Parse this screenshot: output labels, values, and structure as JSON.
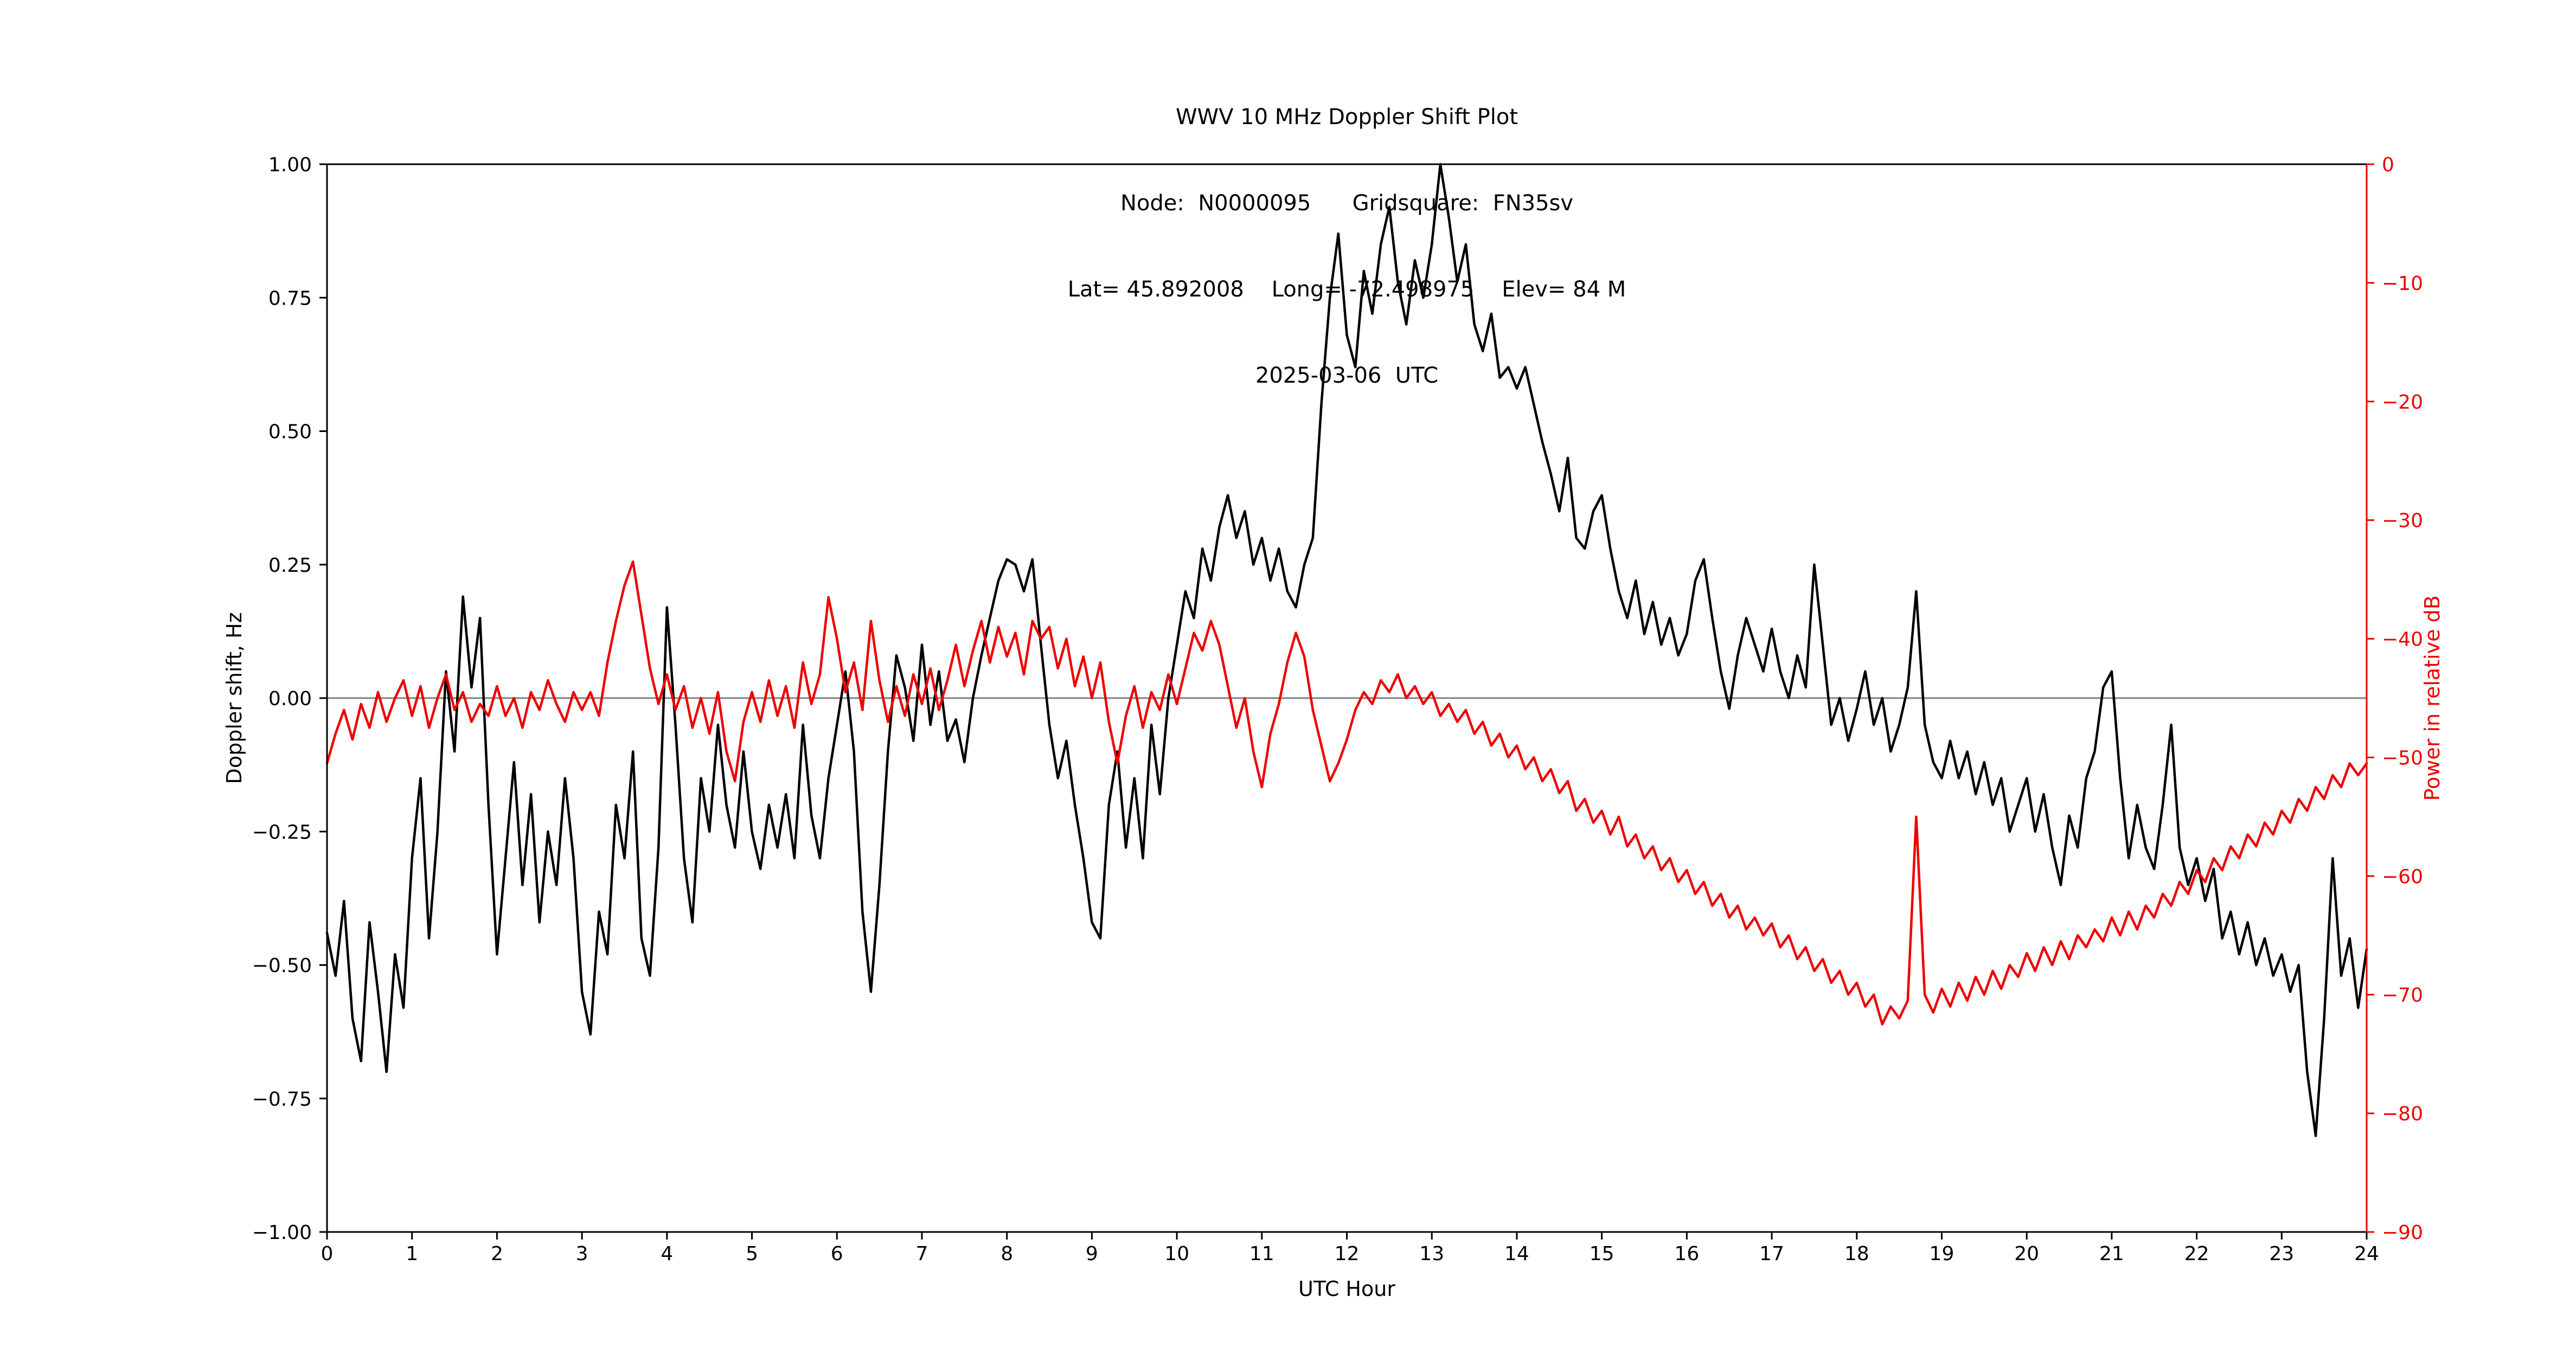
{
  "title": {
    "line1": "WWV 10 MHz Doppler Shift Plot",
    "line2": "Node:  N0000095      Gridsquare:  FN35sv",
    "line3": "Lat= 45.892008    Long= -72.498975    Elev= 84 M",
    "line4": "2025-03-06  UTC"
  },
  "colors": {
    "doppler": "#000000",
    "power": "#ee0000",
    "zero_line": "#7f7f7f",
    "spine": "#000000"
  },
  "chart_data": {
    "type": "line",
    "title": "WWV 10 MHz Doppler Shift Plot",
    "xlabel": "UTC Hour",
    "ylabel_left": "Doppler shift, Hz",
    "ylabel_right": "Power in relative dB",
    "x_range": [
      0,
      24
    ],
    "y_left_range": [
      -1.0,
      1.0
    ],
    "y_right_range": [
      -90,
      0
    ],
    "grid": false,
    "x_step": 0.1,
    "x_ticks": [
      0,
      1,
      2,
      3,
      4,
      5,
      6,
      7,
      8,
      9,
      10,
      11,
      12,
      13,
      14,
      15,
      16,
      17,
      18,
      19,
      20,
      21,
      22,
      23,
      24
    ],
    "x_tick_labels": [
      "0",
      "1",
      "2",
      "3",
      "4",
      "5",
      "6",
      "7",
      "8",
      "9",
      "10",
      "11",
      "12",
      "13",
      "14",
      "15",
      "16",
      "17",
      "18",
      "19",
      "20",
      "21",
      "22",
      "23",
      "24"
    ],
    "y_left_ticks": [
      1.0,
      0.75,
      0.5,
      0.25,
      0.0,
      -0.25,
      -0.5,
      -0.75,
      -1.0
    ],
    "y_left_tick_labels": [
      "1.00",
      "0.75",
      "0.50",
      "0.25",
      "0.00",
      "−0.25",
      "−0.50",
      "−0.75",
      "−1.00"
    ],
    "y_right_ticks": [
      0,
      -10,
      -20,
      -30,
      -40,
      -50,
      -60,
      -70,
      -80,
      -90
    ],
    "y_right_tick_labels": [
      "0",
      "−10",
      "−20",
      "−30",
      "−40",
      "−50",
      "−60",
      "−70",
      "−80",
      "−90"
    ],
    "zero_line": {
      "y": 0.0,
      "color": "#7f7f7f"
    },
    "series": [
      {
        "name": "Doppler shift, Hz",
        "slug": "doppler-shift",
        "axis": "left",
        "color": "#000000",
        "values": [
          -0.44,
          -0.52,
          -0.38,
          -0.6,
          -0.68,
          -0.42,
          -0.55,
          -0.7,
          -0.48,
          -0.58,
          -0.3,
          -0.15,
          -0.45,
          -0.25,
          0.05,
          -0.1,
          0.19,
          0.02,
          0.15,
          -0.2,
          -0.48,
          -0.3,
          -0.12,
          -0.35,
          -0.18,
          -0.42,
          -0.25,
          -0.35,
          -0.15,
          -0.3,
          -0.55,
          -0.63,
          -0.4,
          -0.48,
          -0.2,
          -0.3,
          -0.1,
          -0.45,
          -0.52,
          -0.28,
          0.17,
          -0.05,
          -0.3,
          -0.42,
          -0.15,
          -0.25,
          -0.05,
          -0.2,
          -0.28,
          -0.1,
          -0.25,
          -0.32,
          -0.2,
          -0.28,
          -0.18,
          -0.3,
          -0.05,
          -0.22,
          -0.3,
          -0.15,
          -0.05,
          0.05,
          -0.1,
          -0.4,
          -0.55,
          -0.35,
          -0.1,
          0.08,
          0.02,
          -0.08,
          0.1,
          -0.05,
          0.05,
          -0.08,
          -0.04,
          -0.12,
          0.0,
          0.08,
          0.15,
          0.22,
          0.26,
          0.25,
          0.2,
          0.26,
          0.1,
          -0.05,
          -0.15,
          -0.08,
          -0.2,
          -0.3,
          -0.42,
          -0.45,
          -0.2,
          -0.1,
          -0.28,
          -0.15,
          -0.3,
          -0.05,
          -0.18,
          0.0,
          0.1,
          0.2,
          0.15,
          0.28,
          0.22,
          0.32,
          0.38,
          0.3,
          0.35,
          0.25,
          0.3,
          0.22,
          0.28,
          0.2,
          0.17,
          0.25,
          0.3,
          0.55,
          0.75,
          0.87,
          0.68,
          0.62,
          0.8,
          0.72,
          0.85,
          0.92,
          0.78,
          0.7,
          0.82,
          0.75,
          0.85,
          1.0,
          0.9,
          0.78,
          0.85,
          0.7,
          0.65,
          0.72,
          0.6,
          0.62,
          0.58,
          0.62,
          0.55,
          0.48,
          0.42,
          0.35,
          0.45,
          0.3,
          0.28,
          0.35,
          0.38,
          0.28,
          0.2,
          0.15,
          0.22,
          0.12,
          0.18,
          0.1,
          0.15,
          0.08,
          0.12,
          0.22,
          0.26,
          0.15,
          0.05,
          -0.02,
          0.08,
          0.15,
          0.1,
          0.05,
          0.13,
          0.05,
          0.0,
          0.08,
          0.02,
          0.25,
          0.1,
          -0.05,
          0.0,
          -0.08,
          -0.02,
          0.05,
          -0.05,
          0.0,
          -0.1,
          -0.05,
          0.02,
          0.2,
          -0.05,
          -0.12,
          -0.15,
          -0.08,
          -0.15,
          -0.1,
          -0.18,
          -0.12,
          -0.2,
          -0.15,
          -0.25,
          -0.2,
          -0.15,
          -0.25,
          -0.18,
          -0.28,
          -0.35,
          -0.22,
          -0.28,
          -0.15,
          -0.1,
          0.02,
          0.05,
          -0.15,
          -0.3,
          -0.2,
          -0.28,
          -0.32,
          -0.2,
          -0.05,
          -0.28,
          -0.35,
          -0.3,
          -0.38,
          -0.32,
          -0.45,
          -0.4,
          -0.48,
          -0.42,
          -0.5,
          -0.45,
          -0.52,
          -0.48,
          -0.55,
          -0.5,
          -0.7,
          -0.82,
          -0.6,
          -0.3,
          -0.52,
          -0.45,
          -0.58,
          -0.47
        ]
      },
      {
        "name": "Power in relative dB",
        "slug": "relative-power",
        "axis": "right",
        "color": "#ee0000",
        "values": [
          -50.5,
          -48.0,
          -46.0,
          -48.5,
          -45.5,
          -47.5,
          -44.5,
          -47.0,
          -45.0,
          -43.5,
          -46.5,
          -44.0,
          -47.5,
          -45.0,
          -43.0,
          -46.0,
          -44.5,
          -47.0,
          -45.5,
          -46.5,
          -44.0,
          -46.5,
          -45.0,
          -47.5,
          -44.5,
          -46.0,
          -43.5,
          -45.5,
          -47.0,
          -44.5,
          -46.0,
          -44.5,
          -46.5,
          -42.0,
          -38.5,
          -35.5,
          -33.5,
          -38.0,
          -42.5,
          -45.5,
          -43.0,
          -46.0,
          -44.0,
          -47.5,
          -45.0,
          -48.0,
          -44.5,
          -49.5,
          -52.0,
          -47.0,
          -44.5,
          -47.0,
          -43.5,
          -46.5,
          -44.0,
          -47.5,
          -42.0,
          -45.5,
          -43.0,
          -36.5,
          -40.0,
          -44.5,
          -42.0,
          -46.0,
          -38.5,
          -43.5,
          -47.0,
          -44.0,
          -46.5,
          -43.0,
          -45.5,
          -42.5,
          -46.0,
          -43.5,
          -40.5,
          -44.0,
          -41.0,
          -38.5,
          -42.0,
          -39.0,
          -41.5,
          -39.5,
          -43.0,
          -38.5,
          -40.0,
          -39.0,
          -42.5,
          -40.0,
          -44.0,
          -41.5,
          -45.0,
          -42.0,
          -47.0,
          -50.5,
          -46.5,
          -44.0,
          -47.5,
          -44.5,
          -46.0,
          -43.0,
          -45.5,
          -42.5,
          -39.5,
          -41.0,
          -38.5,
          -40.5,
          -44.0,
          -47.5,
          -45.0,
          -49.5,
          -52.5,
          -48.0,
          -45.5,
          -42.0,
          -39.5,
          -41.5,
          -46.0,
          -49.0,
          -52.0,
          -50.5,
          -48.5,
          -46.0,
          -44.5,
          -45.5,
          -43.5,
          -44.5,
          -43.0,
          -45.0,
          -44.0,
          -45.5,
          -44.5,
          -46.5,
          -45.5,
          -47.0,
          -46.0,
          -48.0,
          -47.0,
          -49.0,
          -48.0,
          -50.0,
          -49.0,
          -51.0,
          -50.0,
          -52.0,
          -51.0,
          -53.0,
          -52.0,
          -54.5,
          -53.5,
          -55.5,
          -54.5,
          -56.5,
          -55.0,
          -57.5,
          -56.5,
          -58.5,
          -57.5,
          -59.5,
          -58.5,
          -60.5,
          -59.5,
          -61.5,
          -60.5,
          -62.5,
          -61.5,
          -63.5,
          -62.5,
          -64.5,
          -63.5,
          -65.0,
          -64.0,
          -66.0,
          -65.0,
          -67.0,
          -66.0,
          -68.0,
          -67.0,
          -69.0,
          -68.0,
          -70.0,
          -69.0,
          -71.0,
          -70.0,
          -72.5,
          -71.0,
          -72.0,
          -70.5,
          -55.0,
          -70.0,
          -71.5,
          -69.5,
          -71.0,
          -69.0,
          -70.5,
          -68.5,
          -70.0,
          -68.0,
          -69.5,
          -67.5,
          -68.5,
          -66.5,
          -68.0,
          -66.0,
          -67.5,
          -65.5,
          -67.0,
          -65.0,
          -66.0,
          -64.5,
          -65.5,
          -63.5,
          -65.0,
          -63.0,
          -64.5,
          -62.5,
          -63.5,
          -61.5,
          -62.5,
          -60.5,
          -61.5,
          -59.5,
          -60.5,
          -58.5,
          -59.5,
          -57.5,
          -58.5,
          -56.5,
          -57.5,
          -55.5,
          -56.5,
          -54.5,
          -55.5,
          -53.5,
          -54.5,
          -52.5,
          -53.5,
          -51.5,
          -52.5,
          -50.5,
          -51.5,
          -50.5
        ]
      }
    ]
  }
}
